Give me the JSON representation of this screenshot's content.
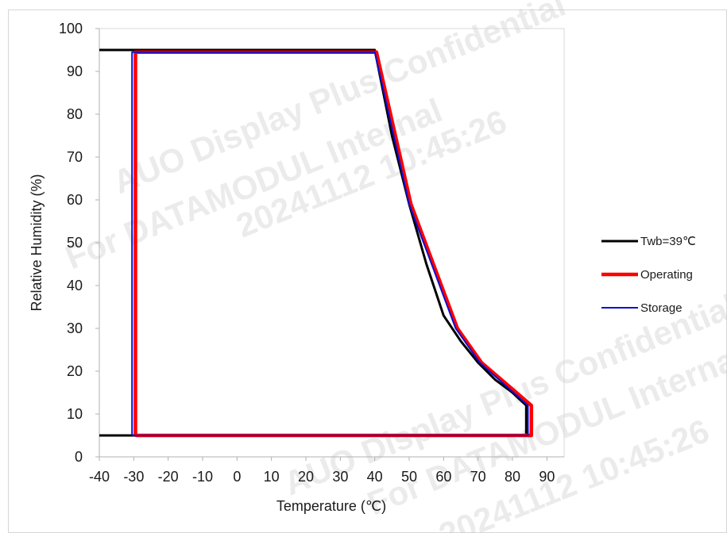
{
  "chart_data": {
    "type": "line",
    "xlabel": "Temperature (℃)",
    "ylabel": "Relative Humidity (%)",
    "xlim": [
      -40,
      95
    ],
    "ylim": [
      0,
      100
    ],
    "xticks": [
      -40,
      -30,
      -20,
      -10,
      0,
      10,
      20,
      30,
      40,
      50,
      60,
      70,
      80,
      90
    ],
    "yticks": [
      0,
      10,
      20,
      30,
      40,
      50,
      60,
      70,
      80,
      90,
      100
    ],
    "grid": false,
    "legend_position": "right",
    "series": [
      {
        "name": "Twb=39℃",
        "color": "#000000",
        "points": [
          [
            -40,
            95
          ],
          [
            40,
            95
          ],
          [
            45,
            75
          ],
          [
            50,
            59
          ],
          [
            55,
            45
          ],
          [
            60,
            33
          ],
          [
            65,
            27
          ],
          [
            70,
            22
          ],
          [
            75,
            18
          ],
          [
            80,
            15
          ],
          [
            84,
            12
          ],
          [
            84,
            5
          ],
          [
            -40,
            5
          ]
        ]
      },
      {
        "name": "Operating",
        "color": "#ff0000",
        "points": [
          [
            -29.5,
            5
          ],
          [
            -29.5,
            94.5
          ],
          [
            40.5,
            94.5
          ],
          [
            50.5,
            59
          ],
          [
            64,
            30
          ],
          [
            71,
            22
          ],
          [
            85.5,
            12
          ],
          [
            85.5,
            5
          ],
          [
            -29.5,
            5
          ]
        ]
      },
      {
        "name": "Storage",
        "color": "#1010d0",
        "points": [
          [
            -30.5,
            5
          ],
          [
            -30.5,
            94.5
          ],
          [
            40,
            94.5
          ],
          [
            50,
            59
          ],
          [
            63.5,
            30
          ],
          [
            70.5,
            22
          ],
          [
            84.5,
            12
          ],
          [
            84.5,
            5
          ],
          [
            -30.5,
            5
          ]
        ]
      }
    ]
  },
  "watermarks": [
    "AUO Display Plus Confidential",
    "For DATAMODUL Internal",
    "20241112 10:45:26",
    "AUO Display Plus Confidential",
    "For DATAMODUL Internal Use Only",
    "20241112 10:45:26"
  ]
}
